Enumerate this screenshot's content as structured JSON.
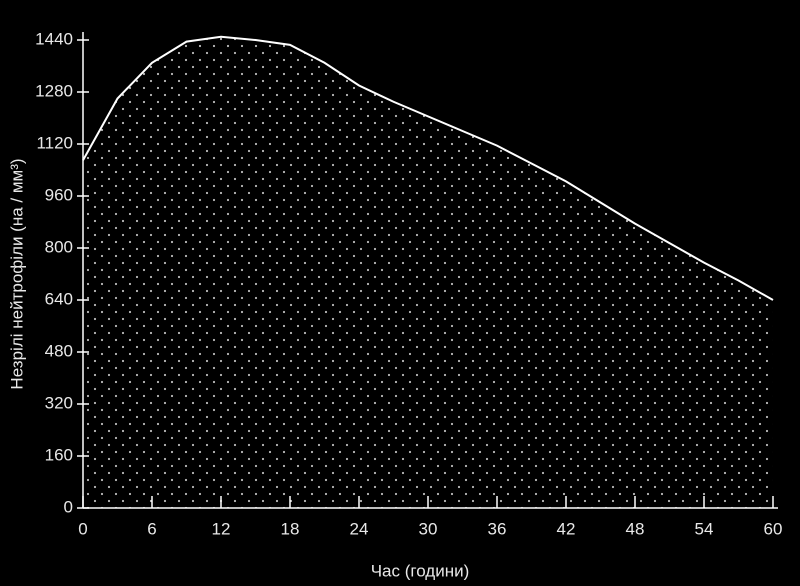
{
  "chart_data": {
    "type": "area",
    "x_label": "Час (години)",
    "y_label": "Незрілі нейтрофіли (на / мм³)",
    "x": [
      0,
      3,
      6,
      9,
      12,
      15,
      18,
      21,
      24,
      27,
      30,
      33,
      36,
      39,
      42,
      45,
      48,
      51,
      54,
      57,
      60
    ],
    "values": [
      1070,
      1260,
      1370,
      1435,
      1450,
      1440,
      1425,
      1370,
      1300,
      1250,
      1205,
      1160,
      1115,
      1060,
      1005,
      940,
      875,
      815,
      755,
      700,
      640
    ],
    "color": "#ffffff",
    "xlim": [
      0,
      60
    ],
    "xticks": [
      0,
      6,
      12,
      18,
      24,
      30,
      36,
      42,
      48,
      54,
      60
    ],
    "ylim": [
      0,
      1440
    ],
    "yticks": [
      0,
      160,
      320,
      480,
      640,
      800,
      960,
      1120,
      1280,
      1440
    ]
  }
}
